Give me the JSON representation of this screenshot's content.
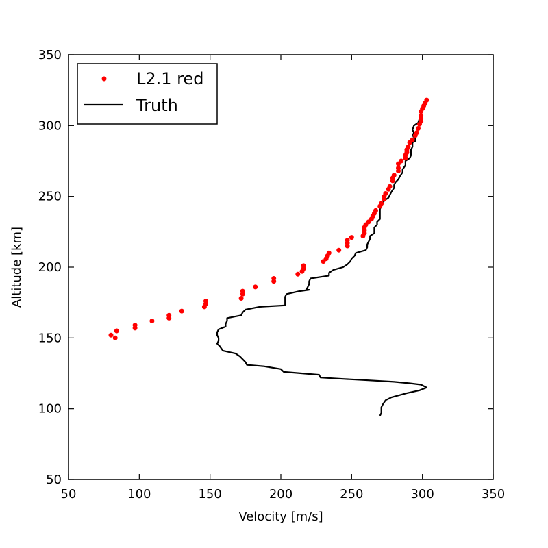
{
  "chart_data": {
    "type": "line",
    "title": "",
    "xlabel": "Velocity [m/s]",
    "ylabel": "Altitude [km]",
    "xlim": [
      50,
      350
    ],
    "ylim": [
      50,
      350
    ],
    "xticks": [
      50,
      100,
      150,
      200,
      250,
      300,
      350
    ],
    "yticks": [
      50,
      100,
      150,
      200,
      250,
      300,
      350
    ],
    "grid": false,
    "legend_position": "top-left",
    "series": [
      {
        "name": "L2.1 red",
        "kind": "scatter",
        "color": "#ff0000",
        "points": [
          [
            303,
            318
          ],
          [
            302,
            316
          ],
          [
            301,
            314
          ],
          [
            300,
            312
          ],
          [
            299,
            310
          ],
          [
            299,
            307
          ],
          [
            299,
            305
          ],
          [
            299,
            303
          ],
          [
            298,
            301
          ],
          [
            297,
            298
          ],
          [
            296,
            295
          ],
          [
            295,
            293
          ],
          [
            293,
            290
          ],
          [
            291,
            288
          ],
          [
            290,
            285
          ],
          [
            289,
            283
          ],
          [
            289,
            281
          ],
          [
            288,
            279
          ],
          [
            288,
            277
          ],
          [
            285,
            275
          ],
          [
            283,
            273
          ],
          [
            283,
            270
          ],
          [
            283,
            268
          ],
          [
            280,
            265
          ],
          [
            279,
            263
          ],
          [
            279,
            261
          ],
          [
            277,
            257
          ],
          [
            276,
            255
          ],
          [
            274,
            252
          ],
          [
            273,
            250
          ],
          [
            273,
            248
          ],
          [
            271,
            245
          ],
          [
            270,
            243
          ],
          [
            267,
            240
          ],
          [
            266,
            238
          ],
          [
            265,
            236
          ],
          [
            264,
            234
          ],
          [
            262,
            232
          ],
          [
            260,
            230
          ],
          [
            259,
            228
          ],
          [
            259,
            226
          ],
          [
            259,
            224
          ],
          [
            258,
            222
          ],
          [
            250,
            221
          ],
          [
            247,
            219
          ],
          [
            247,
            217
          ],
          [
            247,
            215
          ],
          [
            241,
            212
          ],
          [
            234,
            210
          ],
          [
            233,
            208
          ],
          [
            232,
            206
          ],
          [
            230,
            204
          ],
          [
            216,
            201
          ],
          [
            216,
            199
          ],
          [
            215,
            197
          ],
          [
            212,
            195
          ],
          [
            195,
            192
          ],
          [
            195,
            190
          ],
          [
            182,
            186
          ],
          [
            173,
            183
          ],
          [
            173,
            181
          ],
          [
            172,
            178
          ],
          [
            147,
            176
          ],
          [
            147,
            174
          ],
          [
            146,
            172
          ],
          [
            130,
            169
          ],
          [
            121,
            166
          ],
          [
            121,
            164
          ],
          [
            109,
            162
          ],
          [
            97,
            159
          ],
          [
            97,
            157
          ],
          [
            84,
            155
          ],
          [
            80,
            152
          ],
          [
            83,
            150
          ]
        ]
      },
      {
        "name": "Truth",
        "kind": "line",
        "color": "#000000",
        "points": [
          [
            303,
            316
          ],
          [
            302,
            314
          ],
          [
            299,
            312
          ],
          [
            299,
            308
          ],
          [
            298,
            305
          ],
          [
            297,
            302
          ],
          [
            294,
            300
          ],
          [
            293,
            297
          ],
          [
            294,
            295
          ],
          [
            293,
            293
          ],
          [
            295,
            291
          ],
          [
            295,
            289
          ],
          [
            293,
            288
          ],
          [
            293,
            285
          ],
          [
            292,
            283
          ],
          [
            292,
            281
          ],
          [
            292,
            279
          ],
          [
            291,
            277
          ],
          [
            288,
            275
          ],
          [
            288,
            272
          ],
          [
            286,
            269
          ],
          [
            286,
            267
          ],
          [
            284,
            264
          ],
          [
            283,
            262
          ],
          [
            281,
            260
          ],
          [
            280,
            258
          ],
          [
            280,
            256
          ],
          [
            278,
            253
          ],
          [
            277,
            251
          ],
          [
            276,
            249
          ],
          [
            273,
            247
          ],
          [
            272,
            245
          ],
          [
            271,
            243
          ],
          [
            270,
            241
          ],
          [
            270,
            239
          ],
          [
            270,
            237
          ],
          [
            270,
            234
          ],
          [
            268,
            232
          ],
          [
            268,
            230
          ],
          [
            266,
            228
          ],
          [
            266,
            226
          ],
          [
            266,
            224
          ],
          [
            263,
            222
          ],
          [
            263,
            220
          ],
          [
            262,
            218
          ],
          [
            261,
            216
          ],
          [
            261,
            214
          ],
          [
            260,
            212
          ],
          [
            253,
            210
          ],
          [
            252,
            208
          ],
          [
            250,
            206
          ],
          [
            249,
            204
          ],
          [
            247,
            202
          ],
          [
            244,
            200
          ],
          [
            237,
            198
          ],
          [
            234,
            196
          ],
          [
            234,
            194
          ],
          [
            221,
            192
          ],
          [
            220,
            190
          ],
          [
            220,
            188
          ],
          [
            219,
            186
          ],
          [
            218,
            184
          ],
          [
            220,
            184
          ],
          [
            213,
            183
          ],
          [
            204,
            181
          ],
          [
            203,
            179
          ],
          [
            203,
            177
          ],
          [
            203,
            175
          ],
          [
            203,
            173
          ],
          [
            185,
            172
          ],
          [
            175,
            170
          ],
          [
            173,
            168
          ],
          [
            172,
            166
          ],
          [
            167,
            165
          ],
          [
            162,
            164
          ],
          [
            162,
            162
          ],
          [
            161,
            160
          ],
          [
            161,
            158
          ],
          [
            156,
            156
          ],
          [
            155,
            154
          ],
          [
            155,
            152
          ],
          [
            156,
            150
          ],
          [
            156,
            148
          ],
          [
            155,
            146
          ],
          [
            157,
            144
          ],
          [
            159,
            141
          ],
          [
            168,
            139
          ],
          [
            171,
            137
          ],
          [
            173,
            135
          ],
          [
            175,
            133
          ],
          [
            176,
            131
          ],
          [
            188,
            130
          ],
          [
            200,
            128
          ],
          [
            202,
            126
          ],
          [
            227,
            124
          ],
          [
            228,
            122
          ],
          [
            245,
            121
          ],
          [
            263,
            120
          ],
          [
            280,
            119
          ],
          [
            291,
            118
          ],
          [
            299,
            117
          ],
          [
            301,
            116
          ],
          [
            303,
            115
          ],
          [
            298,
            113
          ],
          [
            289,
            111
          ],
          [
            278,
            108
          ],
          [
            274,
            106
          ],
          [
            272,
            103
          ],
          [
            271,
            101
          ],
          [
            271,
            99
          ],
          [
            271,
            97
          ],
          [
            270,
            95
          ]
        ]
      }
    ]
  }
}
